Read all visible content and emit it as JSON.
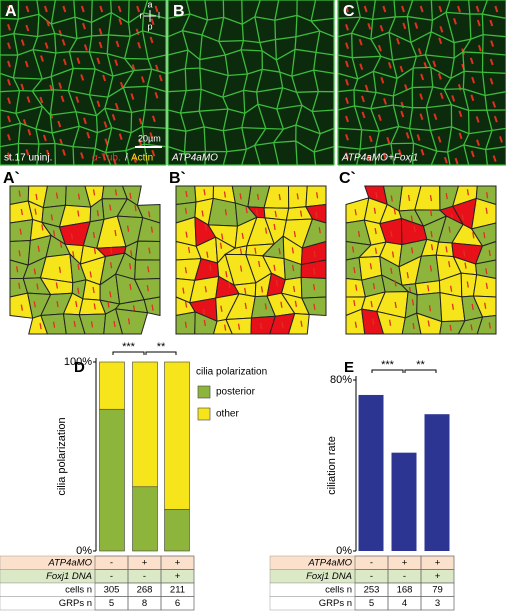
{
  "top_panels": [
    {
      "letter": "A",
      "caption": "st.17 uninj."
    },
    {
      "letter": "B",
      "caption": "ATP4aMO"
    },
    {
      "letter": "C",
      "caption": "ATP4aMO+Foxj1"
    }
  ],
  "stain_labels": [
    "α-Tub.",
    "/",
    "Actin"
  ],
  "orientation": [
    "a",
    "r",
    "l",
    "p"
  ],
  "scale_bar": "20µm",
  "map_panels": [
    "A`",
    "B`",
    "C`"
  ],
  "chart_data": [
    {
      "type": "stacked_bar",
      "panel": "D",
      "ylabel": "cilia polarization",
      "legend_title": "cilia polarization",
      "series": [
        {
          "name": "posterior",
          "color": "#8db53c",
          "values": [
            75,
            34,
            22
          ]
        },
        {
          "name": "other",
          "color": "#f6e51b",
          "values": [
            25,
            66,
            78
          ]
        }
      ],
      "ylim": [
        0,
        100
      ],
      "yticks": [
        {
          "value": 0,
          "label": "0%"
        },
        {
          "value": 100,
          "label": "100%"
        }
      ],
      "annotations": [
        "***",
        "**"
      ],
      "table": [
        {
          "label": "ATP4aMO",
          "color": "#fbe1cb",
          "cells": [
            "-",
            "+",
            "+"
          ]
        },
        {
          "label": "Foxj1 DNA",
          "color": "#dbe9c6",
          "cells": [
            "-",
            "-",
            "+"
          ]
        },
        {
          "label": "cells n",
          "cells": [
            305,
            268,
            211
          ]
        },
        {
          "label": "GRPs n",
          "cells": [
            5,
            8,
            6
          ]
        }
      ]
    },
    {
      "type": "bar",
      "panel": "E",
      "ylabel": "ciliation rate",
      "color": "#2c3591",
      "values": [
        73,
        46,
        64
      ],
      "ylim": [
        0,
        80
      ],
      "yticks": [
        {
          "value": 0,
          "label": "0%"
        },
        {
          "value": 80,
          "label": "80%"
        }
      ],
      "annotations": [
        "***",
        "**"
      ],
      "table": [
        {
          "label": "ATP4aMO",
          "color": "#fbe1cb",
          "cells": [
            "-",
            "+",
            "+"
          ]
        },
        {
          "label": "Foxj1 DNA",
          "color": "#dbe9c6",
          "cells": [
            "-",
            "-",
            "+"
          ]
        },
        {
          "label": "cells n",
          "cells": [
            253,
            168,
            79
          ]
        },
        {
          "label": "GRPs n",
          "cells": [
            5,
            4,
            3
          ]
        }
      ]
    }
  ]
}
